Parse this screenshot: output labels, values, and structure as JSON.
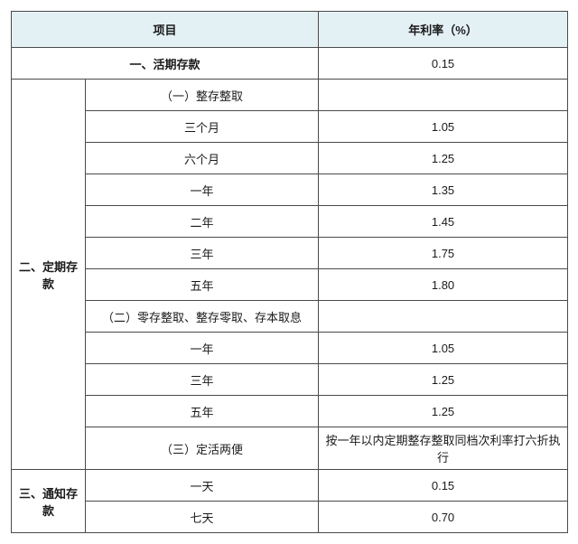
{
  "header": {
    "item": "项目",
    "rate": "年利率（%）"
  },
  "rows": {
    "demand_label": "一、活期存款",
    "demand_rate": "0.15",
    "fixed_side": "二、定期存\n款",
    "fixed_a_label": "（一）整存整取",
    "fixed_a_3m_label": "三个月",
    "fixed_a_3m_rate": "1.05",
    "fixed_a_6m_label": "六个月",
    "fixed_a_6m_rate": "1.25",
    "fixed_a_1y_label": "一年",
    "fixed_a_1y_rate": "1.35",
    "fixed_a_2y_label": "二年",
    "fixed_a_2y_rate": "1.45",
    "fixed_a_3y_label": "三年",
    "fixed_a_3y_rate": "1.75",
    "fixed_a_5y_label": "五年",
    "fixed_a_5y_rate": "1.80",
    "fixed_b_label": "（二）零存整取、整存零取、存本取息",
    "fixed_b_1y_label": "一年",
    "fixed_b_1y_rate": "1.05",
    "fixed_b_3y_label": "三年",
    "fixed_b_3y_rate": "1.25",
    "fixed_b_5y_label": "五年",
    "fixed_b_5y_rate": "1.25",
    "fixed_c_label": "（三）定活两便",
    "fixed_c_rate": "按一年以内定期整存整取同档次利率打六折执行",
    "notice_side": "三、通知存\n款",
    "notice_1d_label": "一天",
    "notice_1d_rate": "0.15",
    "notice_7d_label": "七天",
    "notice_7d_rate": "0.70"
  },
  "style": {
    "border_color": "#4a4a4a",
    "header_bg": "#e3f1f5",
    "font_size": 13
  }
}
